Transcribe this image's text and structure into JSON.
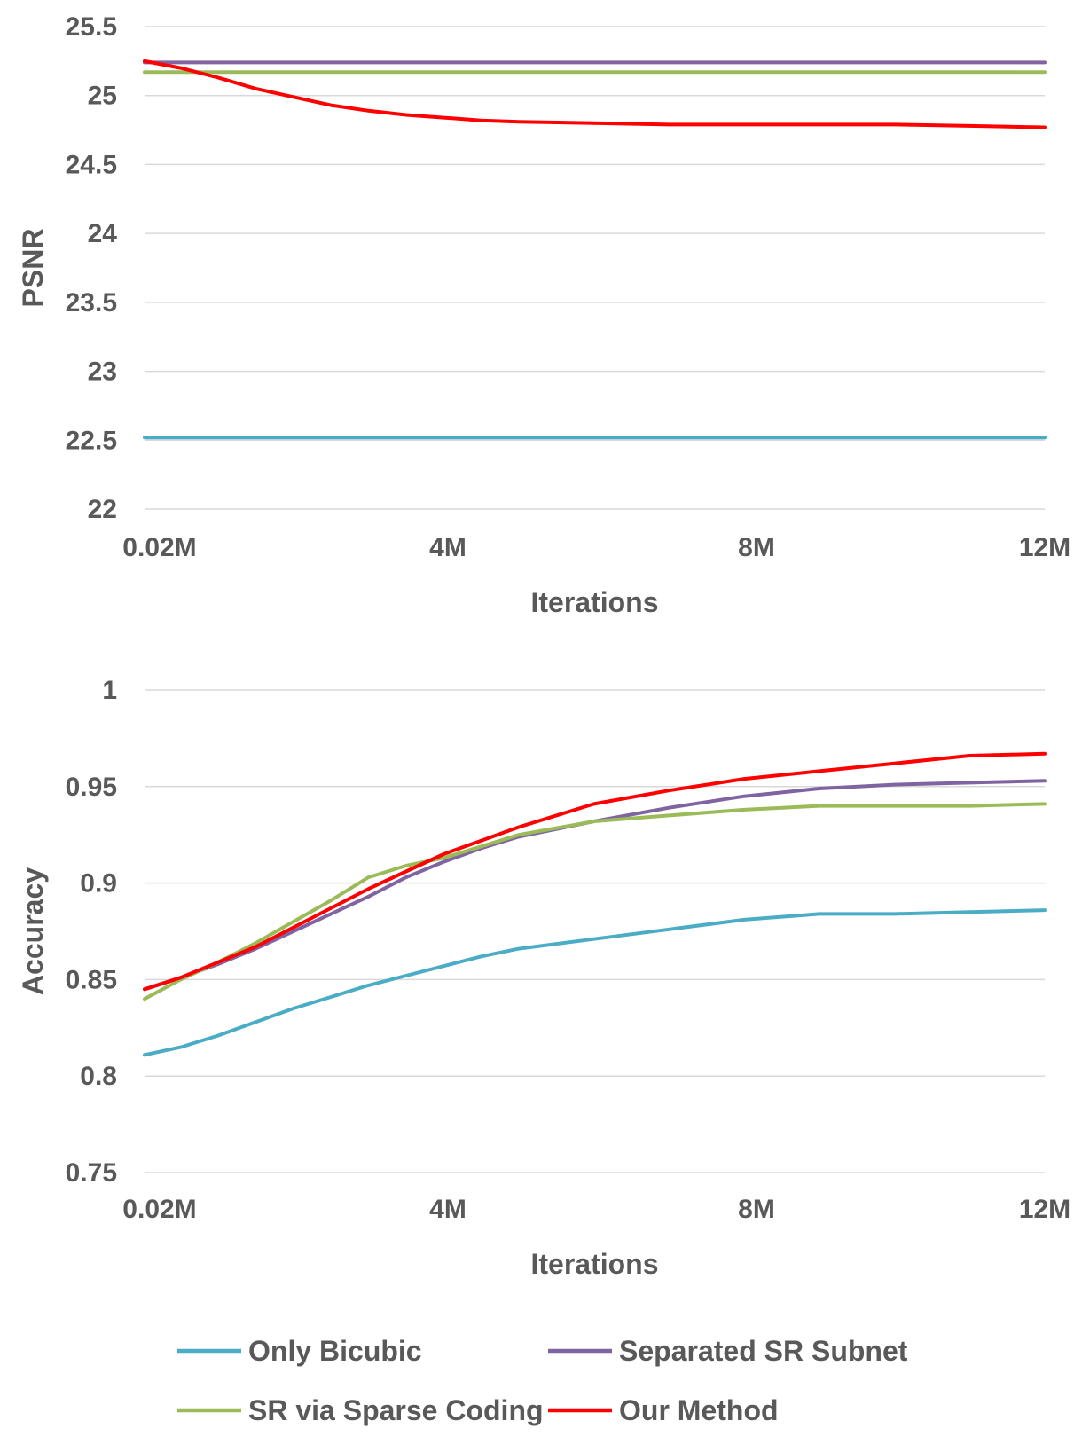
{
  "chart_data": [
    {
      "type": "line",
      "xlabel": "Iterations",
      "ylabel": "PSNR",
      "x_ticks": [
        "0.02M",
        "4M",
        "8M",
        "12M"
      ],
      "xlim": [
        0.02,
        12
      ],
      "ylim": [
        22,
        25.5
      ],
      "y_ticks": [
        "22",
        "22.5",
        "23",
        "23.5",
        "24",
        "24.5",
        "25",
        "25.5"
      ],
      "grid": true,
      "series": [
        {
          "name": "Only Bicubic",
          "color": "#4BACC6",
          "x": [
            0.02,
            12
          ],
          "y": [
            22.52,
            22.52
          ]
        },
        {
          "name": "Separated SR Subnet",
          "color": "#8064A2",
          "x": [
            0.02,
            12
          ],
          "y": [
            25.24,
            25.24
          ]
        },
        {
          "name": "SR via Sparse Coding",
          "color": "#9BBB59",
          "x": [
            0.02,
            12
          ],
          "y": [
            25.17,
            25.17
          ]
        },
        {
          "name": "Our Method",
          "color": "#FF0000",
          "x": [
            0.02,
            0.5,
            1,
            1.5,
            2,
            2.5,
            3,
            3.5,
            4,
            4.5,
            5,
            6,
            7,
            8,
            9,
            10,
            11,
            12
          ],
          "y": [
            25.25,
            25.2,
            25.13,
            25.05,
            24.99,
            24.93,
            24.89,
            24.86,
            24.84,
            24.82,
            24.81,
            24.8,
            24.79,
            24.79,
            24.79,
            24.79,
            24.78,
            24.77
          ]
        }
      ]
    },
    {
      "type": "line",
      "xlabel": "Iterations",
      "ylabel": "Accuracy",
      "x_ticks": [
        "0.02M",
        "4M",
        "8M",
        "12M"
      ],
      "xlim": [
        0.02,
        12
      ],
      "ylim": [
        0.75,
        1
      ],
      "y_ticks": [
        "0.75",
        "0.8",
        "0.85",
        "0.9",
        "0.95",
        "1"
      ],
      "grid": true,
      "series": [
        {
          "name": "Only Bicubic",
          "color": "#4BACC6",
          "x": [
            0.02,
            0.5,
            1,
            1.5,
            2,
            2.5,
            3,
            3.5,
            4,
            4.5,
            5,
            6,
            7,
            8,
            9,
            10,
            11,
            12
          ],
          "y": [
            0.811,
            0.815,
            0.821,
            0.828,
            0.835,
            0.841,
            0.847,
            0.852,
            0.857,
            0.862,
            0.866,
            0.871,
            0.876,
            0.881,
            0.884,
            0.884,
            0.885,
            0.886
          ]
        },
        {
          "name": "Separated SR Subnet",
          "color": "#8064A2",
          "x": [
            0.02,
            0.5,
            1,
            1.5,
            2,
            2.5,
            3,
            3.5,
            4,
            4.5,
            5,
            6,
            7,
            8,
            9,
            10,
            11,
            12
          ],
          "y": [
            0.845,
            0.851,
            0.858,
            0.866,
            0.875,
            0.884,
            0.893,
            0.903,
            0.911,
            0.918,
            0.924,
            0.932,
            0.939,
            0.945,
            0.949,
            0.951,
            0.952,
            0.953
          ]
        },
        {
          "name": "SR via Sparse Coding",
          "color": "#9BBB59",
          "x": [
            0.02,
            0.5,
            1,
            1.5,
            2,
            2.5,
            3,
            3.5,
            4,
            4.5,
            5,
            6,
            7,
            8,
            9,
            10,
            11,
            12
          ],
          "y": [
            0.84,
            0.85,
            0.859,
            0.869,
            0.88,
            0.891,
            0.903,
            0.909,
            0.913,
            0.919,
            0.925,
            0.932,
            0.935,
            0.938,
            0.94,
            0.94,
            0.94,
            0.941
          ]
        },
        {
          "name": "Our Method",
          "color": "#FF0000",
          "x": [
            0.02,
            0.5,
            1,
            1.5,
            2,
            2.5,
            3,
            3.5,
            4,
            4.5,
            5,
            6,
            7,
            8,
            9,
            10,
            11,
            12
          ],
          "y": [
            0.845,
            0.851,
            0.859,
            0.867,
            0.877,
            0.887,
            0.897,
            0.906,
            0.915,
            0.922,
            0.929,
            0.941,
            0.948,
            0.954,
            0.958,
            0.962,
            0.966,
            0.967
          ]
        }
      ]
    }
  ],
  "legend": {
    "placement": "bottom",
    "items": [
      {
        "label": "Only Bicubic",
        "color": "#4BACC6"
      },
      {
        "label": "Separated SR Subnet",
        "color": "#8064A2"
      },
      {
        "label": "SR via Sparse Coding",
        "color": "#9BBB59"
      },
      {
        "label": "Our Method",
        "color": "#FF0000"
      }
    ]
  }
}
